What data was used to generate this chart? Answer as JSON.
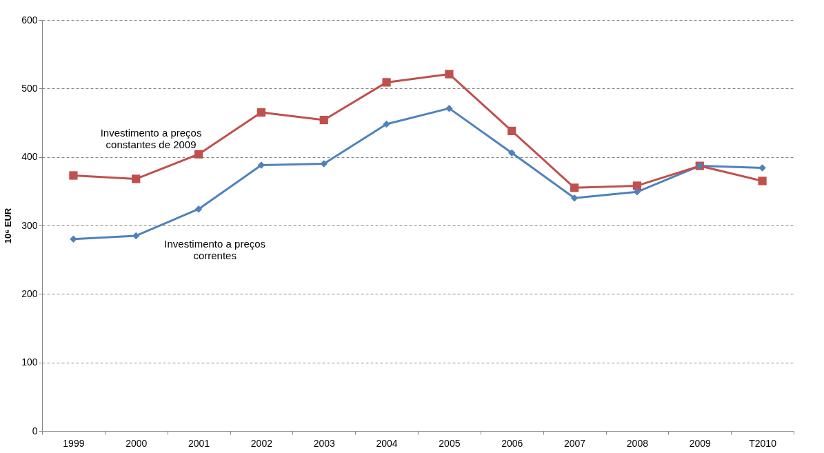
{
  "chart_data": {
    "type": "line",
    "ylabel": "10⁶ EUR",
    "categories": [
      "1999",
      "2000",
      "2001",
      "2002",
      "2003",
      "2004",
      "2005",
      "2006",
      "2007",
      "2008",
      "2009",
      "T2010"
    ],
    "series": [
      {
        "color": "#4f81bd",
        "marker": "diamond",
        "values": [
          280,
          285,
          324,
          388,
          390,
          448,
          471,
          406,
          340,
          349,
          387,
          384
        ]
      },
      {
        "color": "#c0504d",
        "marker": "square",
        "values": [
          373,
          368,
          404,
          465,
          454,
          509,
          521,
          438,
          355,
          358,
          387,
          365
        ]
      }
    ],
    "ylim": [
      0,
      600
    ],
    "yticks": [
      0,
      100,
      200,
      300,
      400,
      500,
      600
    ],
    "grid": "y",
    "line_style": "solid",
    "annotations": [
      "Investimento a preços\nconstantes de 2009",
      "Investimento a preços\ncorrentes"
    ]
  }
}
